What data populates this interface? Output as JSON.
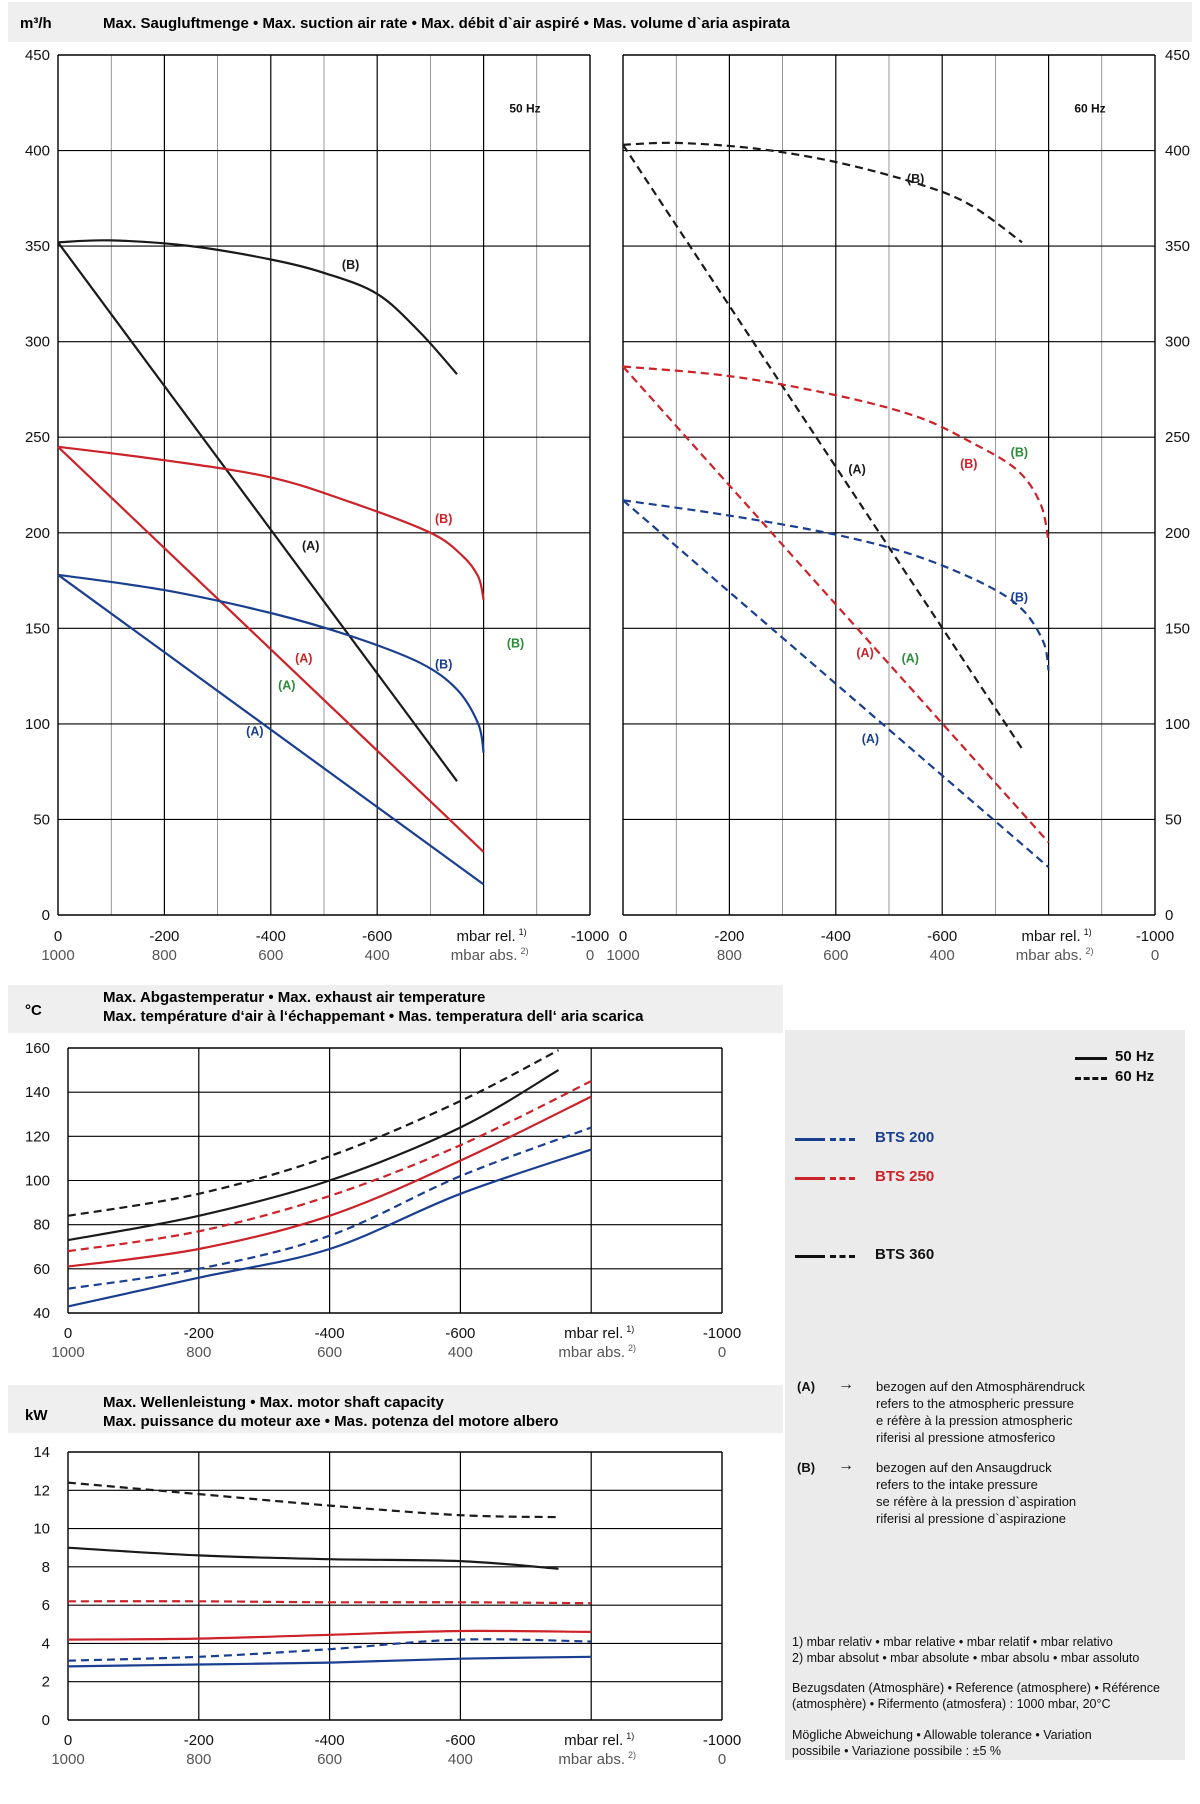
{
  "units": {
    "flow": "m³/h",
    "temp": "°C",
    "power": "kW"
  },
  "flow_title": "Max. Saugluftmenge • Max. suction air rate • Max. débit d`air aspiré • Mas. volume d`aria aspirata",
  "temp_title_1": "Max. Abgastemperatur • Max. exhaust air temperature",
  "temp_title_2": "Max. température d‘air à l‘échappemant • Mas. temperatura dell‘ aria scarica",
  "power_title_1": "Max. Wellenleistung • Max. motor shaft capacity",
  "power_title_2": "Max. puissance du moteur axe • Mas. potenza del motore albero",
  "hz50": "50 Hz",
  "hz60": "60 Hz",
  "x_rel_ticks": [
    "0",
    "-200",
    "-400",
    "-600",
    "-1000"
  ],
  "x_abs_ticks": [
    "1000",
    "800",
    "600",
    "400",
    "0"
  ],
  "x_rel_label": "mbar rel.",
  "x_abs_label": "mbar abs.",
  "sup1": "1)",
  "sup2": "2)",
  "label_A": "(A)",
  "label_B": "(B)",
  "colors": {
    "bts200": "#1a3f91",
    "bts250": "#cc2229",
    "bts360": "#1a1a1a",
    "green": "#2e8b3a",
    "grid": "#000000",
    "panel": "#ebebeb"
  },
  "legend": {
    "l50": "50 Hz",
    "l60": "60 Hz",
    "bts200": "BTS 200",
    "bts250": "BTS 250",
    "bts360": "BTS 360",
    "a_key": "(A)",
    "a_arrow": "→",
    "a_lines": [
      "bezogen auf den Atmosphärendruck",
      "refers to the atmospheric pressure",
      "e réfère à la pression atmospheric",
      "riferisi al pressione atmosferico"
    ],
    "b_key": "(B)",
    "b_arrow": "→",
    "b_lines": [
      "bezogen auf den Ansaugdruck",
      "refers to the intake pressure",
      "se réfère à la pression d`aspiration",
      "riferisi al pressione d`aspirazione"
    ],
    "note1": "1) mbar relativ • mbar relative • mbar relatif • mbar relativo",
    "note2": "2) mbar absolut • mbar absolute • mbar absolu • mbar assoluto",
    "ref_1": "Bezugsdaten (Atmosphäre) • Reference (atmosphere) • Référence",
    "ref_2": "(atmosphère) • Rifermento (atmosfera) : 1000 mbar, 20°C",
    "tol_1": "Mögliche Abweichung • Allowable tolerance • Variation",
    "tol_2": "possibile • Variazione possibile : ±5 %"
  },
  "chart_data": [
    {
      "type": "line",
      "id": "flow50",
      "title": "50 Hz",
      "xlabel": "mbar rel.",
      "ylabel": "m³/h",
      "xlim": [
        0,
        -1000
      ],
      "ylim": [
        0,
        450
      ],
      "yticks": [
        0,
        50,
        100,
        150,
        200,
        250,
        300,
        350,
        400,
        450
      ],
      "series": [
        {
          "name": "(A)",
          "model": "BTS 360",
          "color": "#1a1a1a",
          "dash": false,
          "points": [
            [
              0,
              352
            ],
            [
              -750,
              70
            ]
          ]
        },
        {
          "name": "(B)",
          "model": "BTS 360",
          "color": "#1a1a1a",
          "dash": false,
          "points": [
            [
              0,
              352
            ],
            [
              -100,
              353
            ],
            [
              -250,
              350
            ],
            [
              -400,
              343
            ],
            [
              -500,
              336
            ],
            [
              -600,
              325
            ],
            [
              -680,
              305
            ],
            [
              -750,
              283
            ]
          ]
        },
        {
          "name": "(A)",
          "model": "BTS 250",
          "color": "#cc2229",
          "dash": false,
          "points": [
            [
              0,
              245
            ],
            [
              -800,
              33
            ]
          ]
        },
        {
          "name": "(B)",
          "model": "BTS 250",
          "color": "#cc2229",
          "dash": false,
          "points": [
            [
              0,
              245
            ],
            [
              -200,
              238
            ],
            [
              -400,
              229
            ],
            [
              -550,
              216
            ],
            [
              -700,
              200
            ],
            [
              -760,
              188
            ],
            [
              -790,
              177
            ],
            [
              -800,
              165
            ]
          ]
        },
        {
          "name": "(A)",
          "model": "BTS 200",
          "color": "#1a3f91",
          "dash": false,
          "points": [
            [
              0,
              178
            ],
            [
              -800,
              16
            ]
          ]
        },
        {
          "name": "(B)",
          "model": "BTS 200",
          "color": "#1a3f91",
          "dash": false,
          "points": [
            [
              0,
              178
            ],
            [
              -200,
              170
            ],
            [
              -400,
              158
            ],
            [
              -550,
              146
            ],
            [
              -680,
              132
            ],
            [
              -750,
              118
            ],
            [
              -790,
              100
            ],
            [
              -800,
              85
            ]
          ]
        }
      ],
      "labels": [
        {
          "text": "(B)",
          "color": "#1a1a1a",
          "x": -550,
          "y": 338
        },
        {
          "text": "(A)",
          "color": "#1a1a1a",
          "x": -475,
          "y": 191
        },
        {
          "text": "(B)",
          "color": "#cc2229",
          "x": -725,
          "y": 205
        },
        {
          "text": "(A)",
          "color": "#cc2229",
          "x": -462,
          "y": 132
        },
        {
          "text": "(B)",
          "color": "#1a3f91",
          "x": -725,
          "y": 129
        },
        {
          "text": "(A)",
          "color": "#1a3f91",
          "x": -370,
          "y": 94
        },
        {
          "text": "(A)",
          "color": "#2e8b3a",
          "x": -430,
          "y": 118
        },
        {
          "text": "(B)",
          "color": "#2e8b3a",
          "x": -860,
          "y": 140
        }
      ]
    },
    {
      "type": "line",
      "id": "flow60",
      "title": "60 Hz",
      "xlabel": "mbar rel.",
      "ylabel": "m³/h",
      "xlim": [
        0,
        -1000
      ],
      "ylim": [
        0,
        450
      ],
      "yticks": [
        0,
        50,
        100,
        150,
        200,
        250,
        300,
        350,
        400,
        450
      ],
      "series": [
        {
          "name": "(A)",
          "model": "BTS 360",
          "color": "#1a1a1a",
          "dash": true,
          "points": [
            [
              0,
              403
            ],
            [
              -750,
              87
            ]
          ]
        },
        {
          "name": "(B)",
          "model": "BTS 360",
          "color": "#1a1a1a",
          "dash": true,
          "points": [
            [
              0,
              403
            ],
            [
              -100,
              404
            ],
            [
              -250,
              401
            ],
            [
              -400,
              394
            ],
            [
              -550,
              383
            ],
            [
              -650,
              372
            ],
            [
              -750,
              352
            ]
          ]
        },
        {
          "name": "(A)",
          "model": "BTS 250",
          "color": "#cc2229",
          "dash": true,
          "points": [
            [
              0,
              287
            ],
            [
              -800,
              38
            ]
          ]
        },
        {
          "name": "(B)",
          "model": "BTS 250",
          "color": "#cc2229",
          "dash": true,
          "points": [
            [
              0,
              287
            ],
            [
              -200,
              282
            ],
            [
              -400,
              272
            ],
            [
              -550,
              261
            ],
            [
              -650,
              248
            ],
            [
              -740,
              233
            ],
            [
              -785,
              215
            ],
            [
              -800,
              195
            ]
          ]
        },
        {
          "name": "(A)",
          "model": "BTS 200",
          "color": "#1a3f91",
          "dash": true,
          "points": [
            [
              0,
              217
            ],
            [
              -800,
              25
            ]
          ]
        },
        {
          "name": "(B)",
          "model": "BTS 200",
          "color": "#1a3f91",
          "dash": true,
          "points": [
            [
              0,
              217
            ],
            [
              -200,
              209
            ],
            [
              -400,
              199
            ],
            [
              -550,
              188
            ],
            [
              -680,
              173
            ],
            [
              -750,
              160
            ],
            [
              -790,
              143
            ],
            [
              -800,
              128
            ]
          ]
        }
      ],
      "labels": [
        {
          "text": "(B)",
          "color": "#1a1a1a",
          "x": -550,
          "y": 383
        },
        {
          "text": "(A)",
          "color": "#1a1a1a",
          "x": -440,
          "y": 231
        },
        {
          "text": "(B)",
          "color": "#cc2229",
          "x": -650,
          "y": 234
        },
        {
          "text": "(B)",
          "color": "#2e8b3a",
          "x": -745,
          "y": 240
        },
        {
          "text": "(B)",
          "color": "#1a3f91",
          "x": -745,
          "y": 164
        },
        {
          "text": "(A)",
          "color": "#cc2229",
          "x": -455,
          "y": 135
        },
        {
          "text": "(A)",
          "color": "#2e8b3a",
          "x": -540,
          "y": 132
        },
        {
          "text": "(A)",
          "color": "#1a3f91",
          "x": -465,
          "y": 90
        }
      ]
    },
    {
      "type": "line",
      "id": "temp",
      "title": "",
      "xlabel": "mbar rel.",
      "ylabel": "°C",
      "xlim": [
        0,
        -1000
      ],
      "ylim": [
        40,
        160
      ],
      "yticks": [
        40,
        60,
        80,
        100,
        120,
        140,
        160
      ],
      "series": [
        {
          "name": "50 Hz",
          "model": "BTS 360",
          "color": "#1a1a1a",
          "dash": false,
          "points": [
            [
              0,
              73
            ],
            [
              -200,
              84
            ],
            [
              -400,
              100
            ],
            [
              -600,
              124
            ],
            [
              -750,
              150
            ]
          ]
        },
        {
          "name": "60 Hz",
          "model": "BTS 360",
          "color": "#1a1a1a",
          "dash": true,
          "points": [
            [
              0,
              84
            ],
            [
              -200,
              94
            ],
            [
              -400,
              111
            ],
            [
              -600,
              136
            ],
            [
              -750,
              159
            ]
          ]
        },
        {
          "name": "50 Hz",
          "model": "BTS 250",
          "color": "#cc2229",
          "dash": false,
          "points": [
            [
              0,
              61
            ],
            [
              -200,
              69
            ],
            [
              -400,
              84
            ],
            [
              -600,
              109
            ],
            [
              -800,
              138
            ]
          ]
        },
        {
          "name": "60 Hz",
          "model": "BTS 250",
          "color": "#cc2229",
          "dash": true,
          "points": [
            [
              0,
              68
            ],
            [
              -200,
              77
            ],
            [
              -400,
              93
            ],
            [
              -600,
              116
            ],
            [
              -800,
              145
            ]
          ]
        },
        {
          "name": "50 Hz",
          "model": "BTS 200",
          "color": "#1a3f91",
          "dash": false,
          "points": [
            [
              0,
              43
            ],
            [
              -200,
              56
            ],
            [
              -400,
              69
            ],
            [
              -600,
              94
            ],
            [
              -800,
              114
            ]
          ]
        },
        {
          "name": "60 Hz",
          "model": "BTS 200",
          "color": "#1a3f91",
          "dash": true,
          "points": [
            [
              0,
              51
            ],
            [
              -200,
              60
            ],
            [
              -400,
              75
            ],
            [
              -600,
              102
            ],
            [
              -800,
              124
            ]
          ]
        }
      ]
    },
    {
      "type": "line",
      "id": "power",
      "title": "",
      "xlabel": "mbar rel.",
      "ylabel": "kW",
      "xlim": [
        0,
        -1000
      ],
      "ylim": [
        0,
        14
      ],
      "yticks": [
        0,
        2,
        4,
        6,
        8,
        10,
        12,
        14
      ],
      "series": [
        {
          "name": "60 Hz",
          "model": "BTS 360",
          "color": "#1a1a1a",
          "dash": true,
          "points": [
            [
              0,
              12.4
            ],
            [
              -200,
              11.8
            ],
            [
              -400,
              11.2
            ],
            [
              -600,
              10.7
            ],
            [
              -750,
              10.6
            ]
          ]
        },
        {
          "name": "50 Hz",
          "model": "BTS 360",
          "color": "#1a1a1a",
          "dash": false,
          "points": [
            [
              0,
              9.0
            ],
            [
              -200,
              8.6
            ],
            [
              -400,
              8.4
            ],
            [
              -600,
              8.3
            ],
            [
              -750,
              7.9
            ]
          ]
        },
        {
          "name": "60 Hz",
          "model": "BTS 250",
          "color": "#cc2229",
          "dash": true,
          "points": [
            [
              0,
              6.2
            ],
            [
              -200,
              6.2
            ],
            [
              -400,
              6.15
            ],
            [
              -600,
              6.15
            ],
            [
              -800,
              6.1
            ]
          ]
        },
        {
          "name": "50 Hz",
          "model": "BTS 250",
          "color": "#cc2229",
          "dash": false,
          "points": [
            [
              0,
              4.2
            ],
            [
              -200,
              4.25
            ],
            [
              -400,
              4.45
            ],
            [
              -600,
              4.65
            ],
            [
              -800,
              4.6
            ]
          ]
        },
        {
          "name": "60 Hz",
          "model": "BTS 200",
          "color": "#1a3f91",
          "dash": true,
          "points": [
            [
              0,
              3.1
            ],
            [
              -200,
              3.3
            ],
            [
              -400,
              3.7
            ],
            [
              -600,
              4.2
            ],
            [
              -800,
              4.1
            ]
          ]
        },
        {
          "name": "50 Hz",
          "model": "BTS 200",
          "color": "#1a3f91",
          "dash": false,
          "points": [
            [
              0,
              2.8
            ],
            [
              -200,
              2.9
            ],
            [
              -400,
              3.0
            ],
            [
              -600,
              3.2
            ],
            [
              -800,
              3.3
            ]
          ]
        }
      ]
    }
  ]
}
